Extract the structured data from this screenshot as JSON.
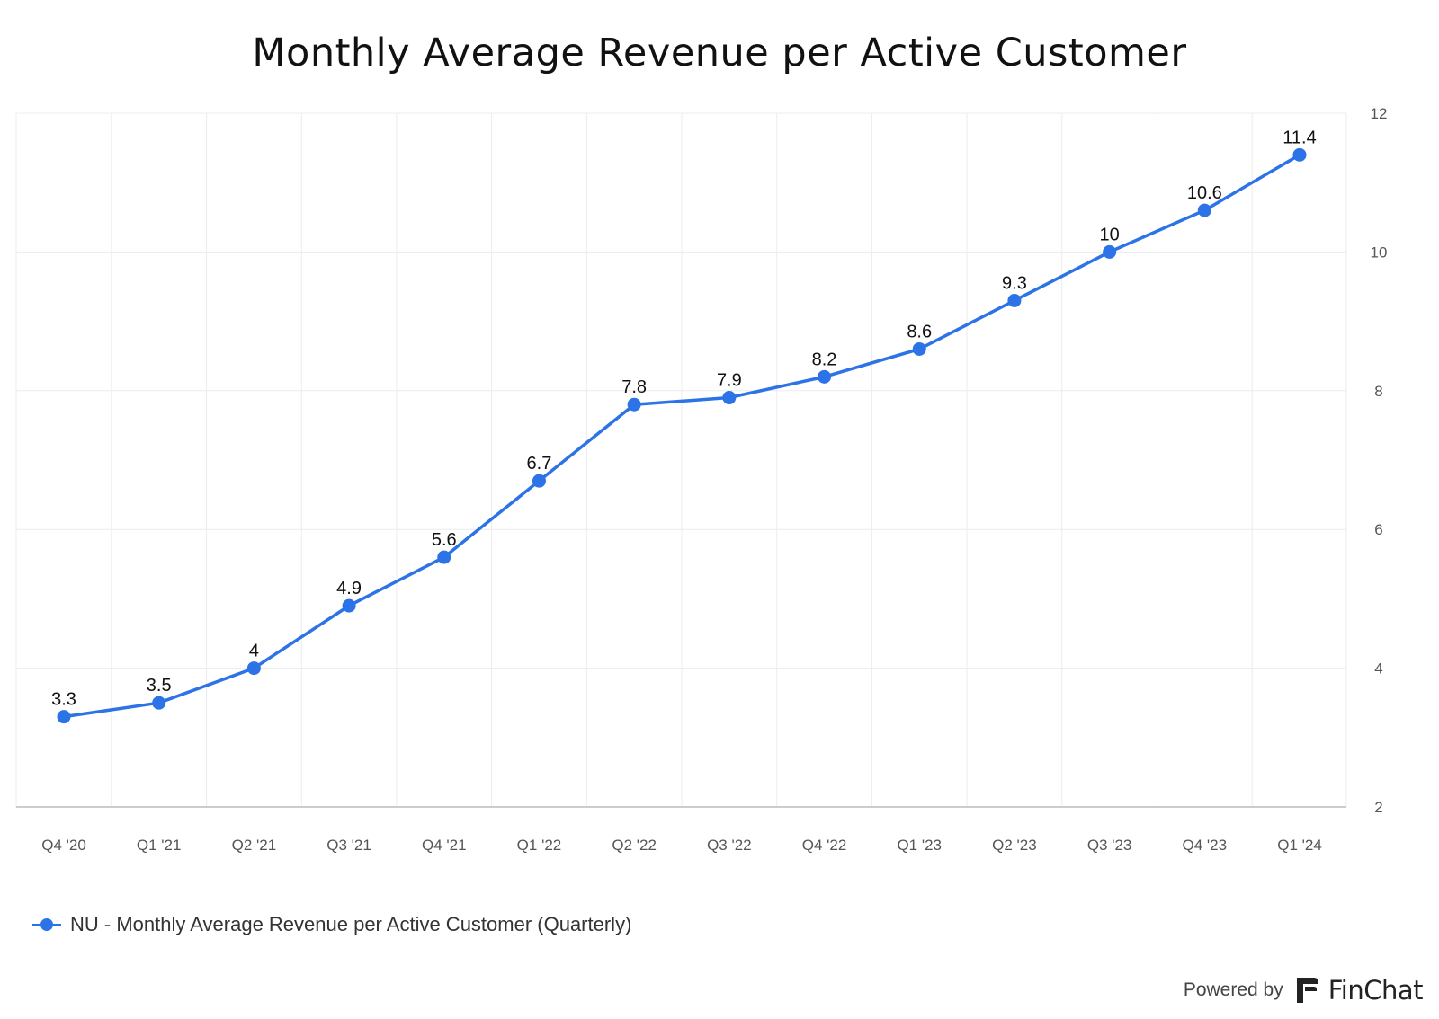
{
  "title": "Monthly Average Revenue per Active Customer",
  "legend": {
    "label": "NU - Monthly Average Revenue per Active Customer (Quarterly)"
  },
  "footer": {
    "powered_by": "Powered by",
    "brand": "FinChat"
  },
  "colors": {
    "series": "#2b73e6",
    "grid": "#ececec",
    "axis": "#cccccc",
    "tick_text": "#555555",
    "label_text": "#111111"
  },
  "chart_data": {
    "type": "line",
    "title": "Monthly Average Revenue per Active Customer",
    "xlabel": "",
    "ylabel": "",
    "categories": [
      "Q4 '20",
      "Q1 '21",
      "Q2 '21",
      "Q3 '21",
      "Q4 '21",
      "Q1 '22",
      "Q2 '22",
      "Q3 '22",
      "Q4 '22",
      "Q1 '23",
      "Q2 '23",
      "Q3 '23",
      "Q4 '23",
      "Q1 '24"
    ],
    "series": [
      {
        "name": "NU - Monthly Average Revenue per Active Customer (Quarterly)",
        "values": [
          3.3,
          3.5,
          4,
          4.9,
          5.6,
          6.7,
          7.8,
          7.9,
          8.2,
          8.6,
          9.3,
          10,
          10.6,
          11.4
        ]
      }
    ],
    "data_labels": [
      "3.3",
      "3.5",
      "4",
      "4.9",
      "5.6",
      "6.7",
      "7.8",
      "7.9",
      "8.2",
      "8.6",
      "9.3",
      "10",
      "10.6",
      "11.4"
    ],
    "ylim": [
      2,
      12
    ],
    "yticks": [
      2,
      4,
      6,
      8,
      10,
      12
    ],
    "ytick_labels": [
      "2",
      "4",
      "6",
      "8",
      "10",
      "12"
    ],
    "y_axis_side": "right",
    "grid": true,
    "legend_position": "bottom-left"
  }
}
